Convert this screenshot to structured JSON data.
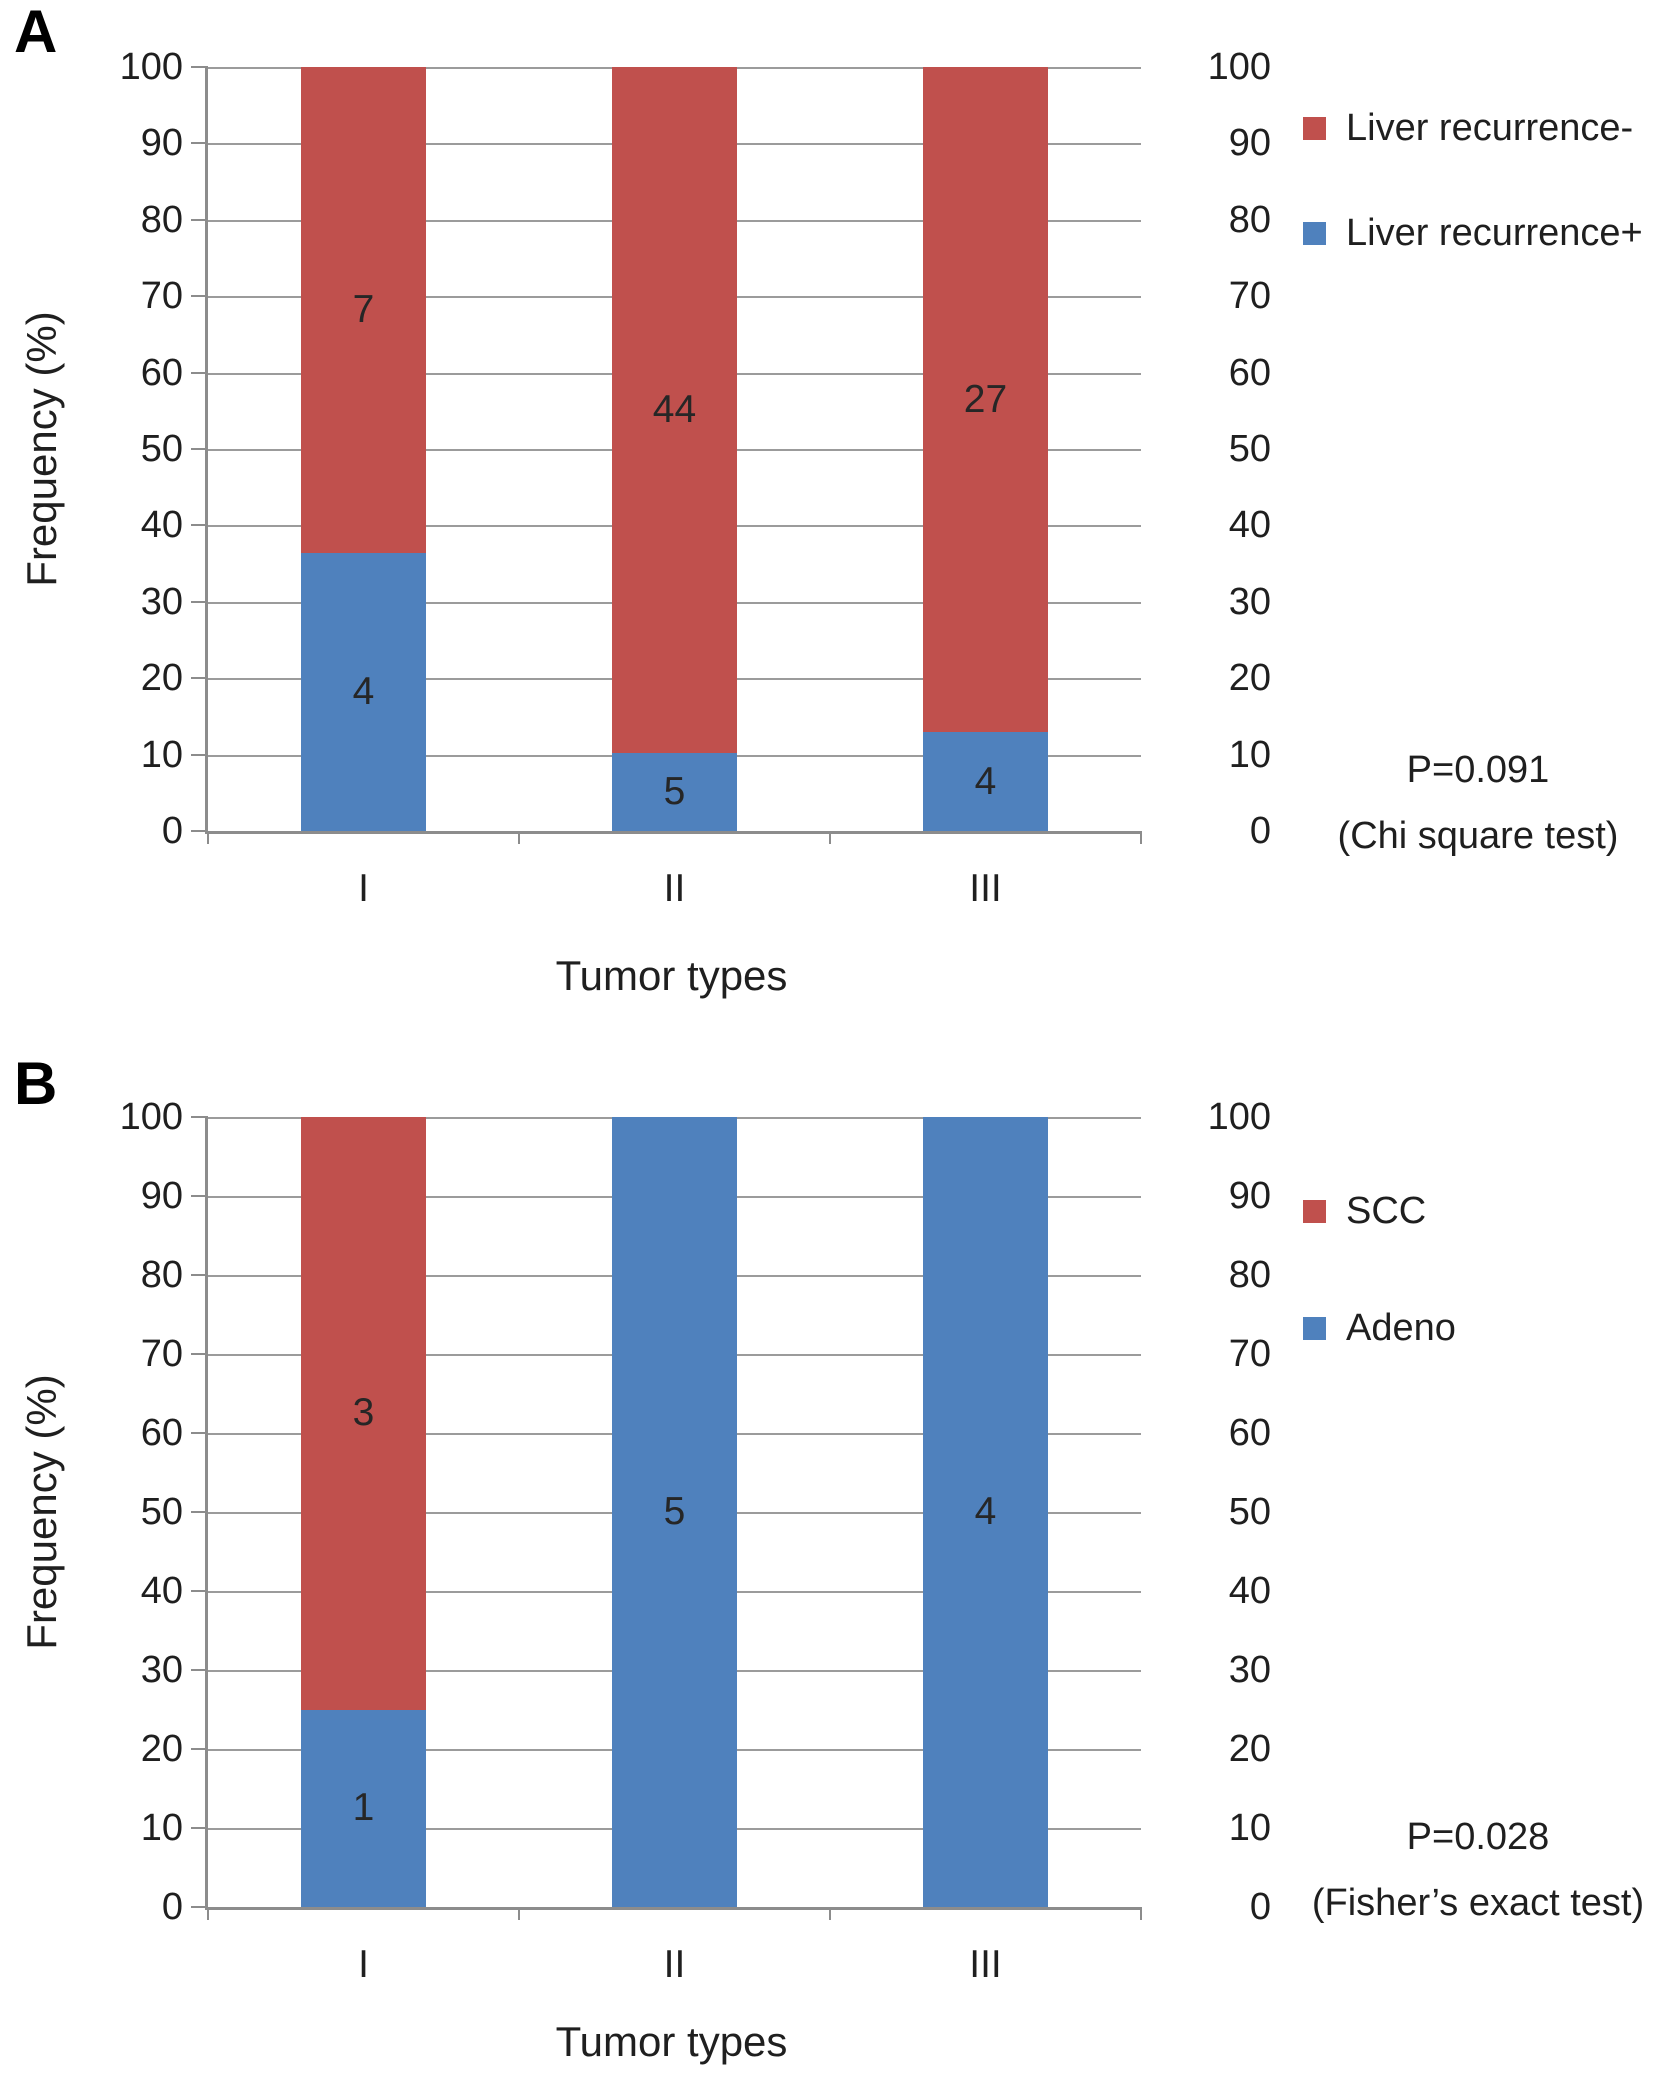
{
  "colors": {
    "red": "#c0504d",
    "blue": "#4f81bd",
    "gridline": "#9b9b9b",
    "axis": "#8c8c8c",
    "text": "#1f1f1f"
  },
  "chart_data": [
    {
      "type": "bar",
      "stacked": true,
      "percent_stacked": true,
      "panel_label": "A",
      "title": "",
      "xlabel": "Tumor types",
      "ylabel": "Frequency (%)",
      "ylim": [
        0,
        100
      ],
      "y_ticks": [
        0,
        10,
        20,
        30,
        40,
        50,
        60,
        70,
        80,
        90,
        100
      ],
      "grid": true,
      "dual_y_axis": true,
      "categories": [
        "I",
        "II",
        "III"
      ],
      "series": [
        {
          "name": "Liver recurrence+",
          "color_key": "blue",
          "counts": [
            4,
            5,
            4
          ],
          "percent_values": [
            36.4,
            10.2,
            12.9
          ]
        },
        {
          "name": "Liver recurrence-",
          "color_key": "red",
          "counts": [
            7,
            44,
            27
          ],
          "percent_values": [
            63.6,
            89.8,
            87.1
          ]
        }
      ],
      "legend": {
        "position": "top-right",
        "marker": "square",
        "entries": [
          {
            "label": "Liver recurrence-",
            "color_key": "red"
          },
          {
            "label": "Liver recurrence+",
            "color_key": "blue"
          }
        ]
      },
      "annotation": [
        "P=0.091",
        "(Chi square test)"
      ]
    },
    {
      "type": "bar",
      "stacked": true,
      "percent_stacked": true,
      "panel_label": "B",
      "title": "",
      "xlabel": "Tumor types",
      "ylabel": "Frequency (%)",
      "ylim": [
        0,
        100
      ],
      "y_ticks": [
        0,
        10,
        20,
        30,
        40,
        50,
        60,
        70,
        80,
        90,
        100
      ],
      "grid": true,
      "dual_y_axis": true,
      "categories": [
        "I",
        "II",
        "III"
      ],
      "series": [
        {
          "name": "Adeno",
          "color_key": "blue",
          "counts": [
            1,
            5,
            4
          ],
          "percent_values": [
            25,
            100,
            100
          ]
        },
        {
          "name": "SCC",
          "color_key": "red",
          "counts": [
            3,
            null,
            null
          ],
          "percent_values": [
            75,
            0,
            0
          ]
        }
      ],
      "legend": {
        "position": "top-right",
        "marker": "square",
        "entries": [
          {
            "label": "SCC",
            "color_key": "red"
          },
          {
            "label": "Adeno",
            "color_key": "blue"
          }
        ]
      },
      "annotation": [
        "P=0.028",
        "(Fisher’s exact test)"
      ]
    }
  ]
}
